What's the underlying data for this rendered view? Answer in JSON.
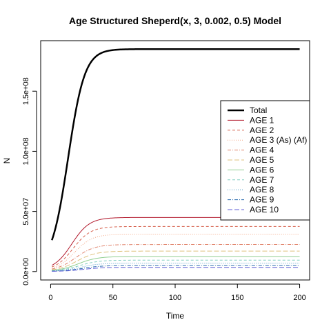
{
  "chart_data": {
    "type": "line",
    "title": "Age Structured Sheperd(x, 3, 0.002, 0.5) Model",
    "xlabel": "Time",
    "ylabel": "N",
    "xlim": [
      -8,
      208
    ],
    "ylim": [
      -7000000,
      192000000
    ],
    "xticks": [
      0,
      50,
      100,
      150,
      200
    ],
    "xtick_labels": [
      "0",
      "50",
      "100",
      "150",
      "200"
    ],
    "yticks": [
      0,
      50000000,
      100000000,
      150000000
    ],
    "ytick_labels": [
      "0.0e+00",
      "5.0e+07",
      "1.0e+08",
      "1.5e+08"
    ],
    "legend_position": "right",
    "series": [
      {
        "name": "Total",
        "equilibrium": 185000000,
        "start": 3500000,
        "midpoint": 14,
        "rate": 0.15,
        "color": "#000000",
        "dash": "",
        "width": 2.5
      },
      {
        "name": "AGE 1",
        "equilibrium": 45000000,
        "start": 1000000,
        "midpoint": 17,
        "rate": 0.14,
        "color": "#b2182b",
        "dash": "",
        "width": 1
      },
      {
        "name": "AGE 2",
        "equilibrium": 37500000,
        "start": 700000,
        "midpoint": 18,
        "rate": 0.14,
        "color": "#d6604d",
        "dash": "4,3",
        "width": 1
      },
      {
        "name": "AGE 3 (As) (Af)",
        "equilibrium": 31000000,
        "start": 500000,
        "midpoint": 19,
        "rate": 0.14,
        "color": "#f4a582",
        "dash": "1,2",
        "width": 1
      },
      {
        "name": "AGE 4",
        "equilibrium": 22500000,
        "start": 400000,
        "midpoint": 20,
        "rate": 0.13,
        "color": "#e0826a",
        "dash": "5,2,1,2",
        "width": 1
      },
      {
        "name": "AGE 5",
        "equilibrium": 17000000,
        "start": 300000,
        "midpoint": 21,
        "rate": 0.13,
        "color": "#dfc27d",
        "dash": "7,3",
        "width": 1
      },
      {
        "name": "AGE 6",
        "equilibrium": 12500000,
        "start": 250000,
        "midpoint": 22,
        "rate": 0.13,
        "color": "#8fce8f",
        "dash": "",
        "width": 1
      },
      {
        "name": "AGE 7",
        "equilibrium": 9500000,
        "start": 200000,
        "midpoint": 23,
        "rate": 0.13,
        "color": "#80cdc1",
        "dash": "4,3",
        "width": 1
      },
      {
        "name": "AGE 8",
        "equilibrium": 7000000,
        "start": 150000,
        "midpoint": 24,
        "rate": 0.13,
        "color": "#4393c3",
        "dash": "1,2",
        "width": 1
      },
      {
        "name": "AGE 9",
        "equilibrium": 5000000,
        "start": 120000,
        "midpoint": 25,
        "rate": 0.13,
        "color": "#2166ac",
        "dash": "5,2,1,2",
        "width": 1
      },
      {
        "name": "AGE 10",
        "equilibrium": 3500000,
        "start": 100000,
        "midpoint": 26,
        "rate": 0.13,
        "color": "#5e5ed6",
        "dash": "7,3",
        "width": 1
      }
    ]
  }
}
